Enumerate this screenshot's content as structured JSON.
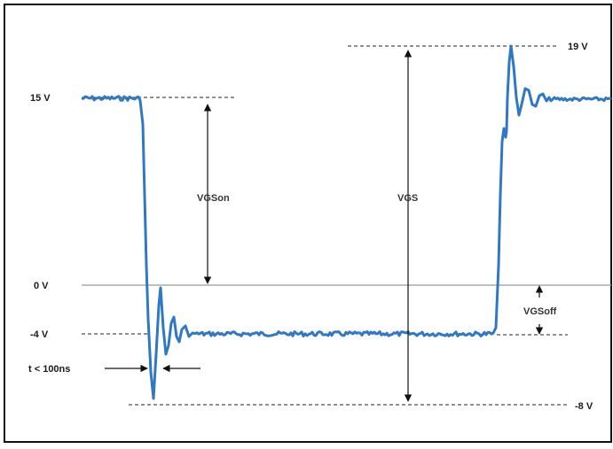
{
  "labels": {
    "v19": "19 V",
    "v15": "15 V",
    "v0": "0 V",
    "vneg4": "-4 V",
    "vneg8": "-8 V",
    "vgson": "VGSon",
    "vgs": "VGS",
    "vgsoff": "VGSoff",
    "trise": "t < 100ns"
  },
  "colors": {
    "signal": "#2f78c4",
    "zero_line": "#9a9a9a",
    "annotation": "#111111"
  }
}
